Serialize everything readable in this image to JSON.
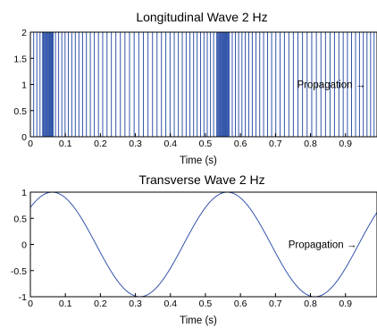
{
  "chart_data": [
    {
      "type": "line",
      "subtype": "impulse",
      "title": "Longitudinal Wave 2 Hz",
      "xlabel": "Time (s)",
      "ylabel": "",
      "xlim": [
        0,
        0.99
      ],
      "ylim": [
        0,
        2
      ],
      "xticks": [
        "0",
        "0.1",
        "0.2",
        "0.3",
        "0.4",
        "0.5",
        "0.6",
        "0.7",
        "0.8",
        "0.9"
      ],
      "yticks": [
        "0",
        "0.5",
        "1",
        "1.5",
        "2"
      ],
      "line_height": 2,
      "signal": {
        "frequency_hz": 2,
        "compression_phase_s": 0.05,
        "samples": 91
      },
      "annotation": {
        "text": "Propagation →",
        "x": 0.88,
        "y": 1.0
      },
      "color": "#3355aa",
      "grid": false
    },
    {
      "type": "line",
      "title": "Transverse Wave 2 Hz",
      "xlabel": "Time (s)",
      "ylabel": "",
      "xlim": [
        0,
        0.99
      ],
      "ylim": [
        -1,
        1
      ],
      "xticks": [
        "0",
        "0.1",
        "0.2",
        "0.3",
        "0.4",
        "0.5",
        "0.6",
        "0.7",
        "0.8",
        "0.9"
      ],
      "yticks": [
        "-1",
        "-0.5",
        "0",
        "0.5",
        "1"
      ],
      "series": [
        {
          "function": "sin",
          "frequency_hz": 2,
          "phase_rad": 0.785,
          "amplitude": 1
        }
      ],
      "annotation": {
        "text": "Propagation →",
        "x": 0.86,
        "y": 0.0
      },
      "color": "#3355aa",
      "grid": false
    }
  ]
}
